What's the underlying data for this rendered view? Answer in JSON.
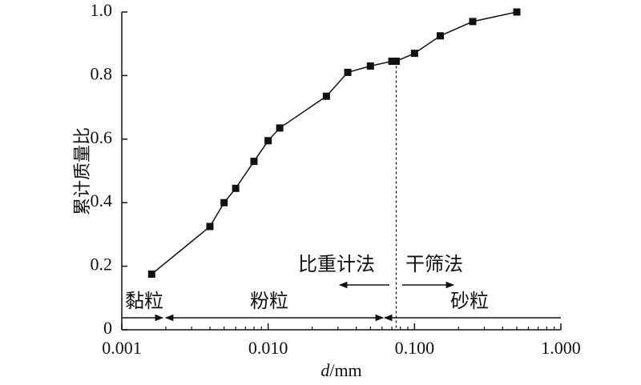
{
  "chart_data": {
    "type": "line",
    "x_scale": "log",
    "xlim": [
      0.001,
      1.0
    ],
    "ylim": [
      0,
      1.0
    ],
    "xticks": [
      "0.001",
      "0.010",
      "0.100",
      "1.000"
    ],
    "yticks": [
      "0",
      "0.2",
      "0.4",
      "0.6",
      "0.8",
      "1.0"
    ],
    "xlabel_italic": "d",
    "xlabel_rest": "/mm",
    "ylabel": "累计质量比",
    "grid": false,
    "series": [
      {
        "marker": "square",
        "color": "#111111",
        "x": [
          0.0016,
          0.004,
          0.005,
          0.006,
          0.008,
          0.01,
          0.012,
          0.025,
          0.035,
          0.05,
          0.07,
          0.075,
          0.1,
          0.15,
          0.25,
          0.5
        ],
        "y": [
          0.175,
          0.325,
          0.4,
          0.445,
          0.53,
          0.595,
          0.635,
          0.735,
          0.81,
          0.83,
          0.845,
          0.845,
          0.87,
          0.925,
          0.97,
          1.0
        ]
      }
    ],
    "divider_x": 0.075,
    "annotations": {
      "hydrometer": "比重计法",
      "sieve": "干筛法",
      "clay": "黏粒",
      "silt": "粉粒",
      "sand": "砂粒"
    }
  }
}
